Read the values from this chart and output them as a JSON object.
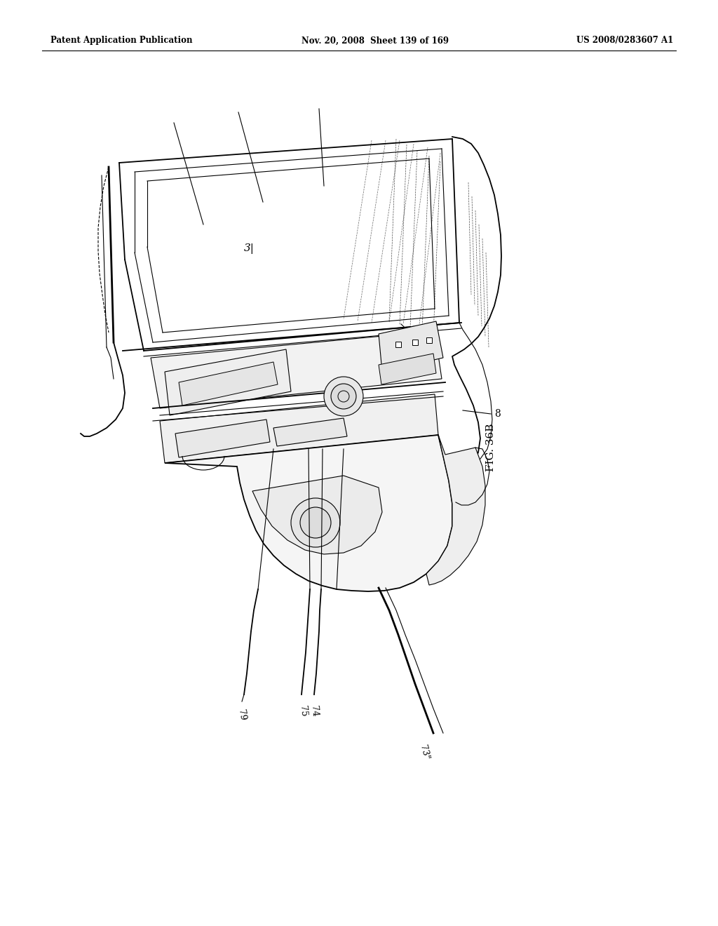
{
  "background_color": "#ffffff",
  "header_left": "Patent Application Publication",
  "header_center": "Nov. 20, 2008  Sheet 139 of 169",
  "header_right": "US 2008/0283607 A1",
  "figure_label": "FIG. 36B",
  "label_8": "8",
  "labels_bottom": [
    "79",
    "75",
    "74",
    "73\""
  ],
  "label_31": "3|",
  "fig_width": 10.24,
  "fig_height": 13.2,
  "dpi": 100
}
